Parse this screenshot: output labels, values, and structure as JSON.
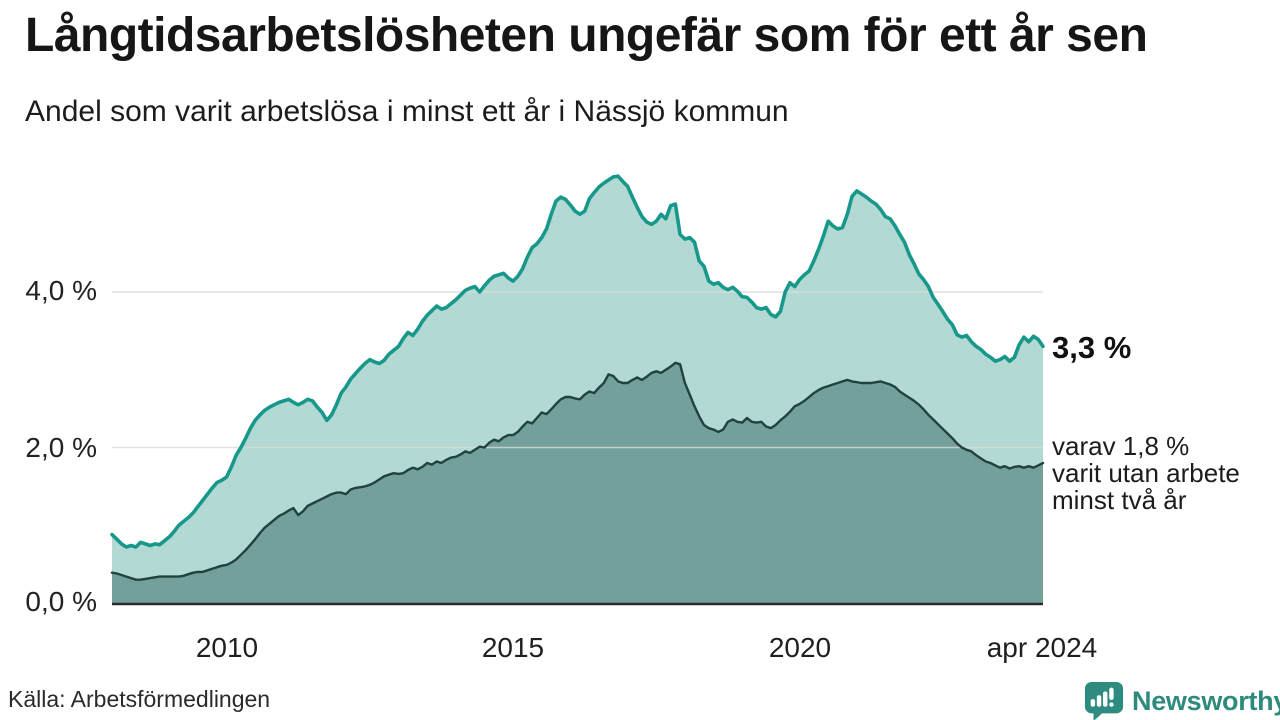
{
  "header": {
    "title": "Långtidsarbetslösheten ungefär som för ett år sen",
    "subtitle": "Andel som varit arbetslösa i minst ett år i Nässjö kommun"
  },
  "annotations": {
    "total_label": "3,3 %",
    "secondary_lines": [
      "varav 1,8 %",
      "varit utan arbete",
      "minst två år"
    ]
  },
  "source": {
    "label": "Källa: Arbetsförmedlingen"
  },
  "branding": {
    "wordmark": "Newsworthy",
    "color": "#2f8a7e",
    "icon": "speech-bubble-bar-chart"
  },
  "colors": {
    "background": "#ffffff",
    "grid": "#d9d9d9",
    "axis": "#2b2b2b",
    "total_line": "#18988b",
    "total_fill": "#b2d9d3",
    "two_year_line": "#21423e",
    "two_year_fill": "#74a09b"
  },
  "chart_data": {
    "type": "area",
    "title": "Långtidsarbetslösheten ungefär som för ett år sen",
    "subtitle": "Andel som varit arbetslösa i minst ett år i Nässjö kommun",
    "unit": "percent",
    "x_start": "2008-01",
    "x_end": "2024-04",
    "frequency": "monthly",
    "x_tick_labels": [
      "2010",
      "2015",
      "2020",
      "apr 2024"
    ],
    "x_tick_positions": [
      "2010-01",
      "2015-01",
      "2020-01",
      "2024-04"
    ],
    "y_ticks": [
      {
        "label": "0,0 %",
        "value": 0
      },
      {
        "label": "2,0 %",
        "value": 2
      },
      {
        "label": "4,0 %",
        "value": 4
      }
    ],
    "grid_values": [
      2,
      4
    ],
    "ylim": [
      0,
      5.8
    ],
    "legend": "none",
    "series": [
      {
        "name": "Andel arbetslösa minst ett år",
        "end_label": "3,3 %",
        "end_value": 3.3,
        "line_color": "#18988b",
        "fill_color": "#b2d9d3",
        "values": [
          0.88,
          0.82,
          0.76,
          0.72,
          0.74,
          0.72,
          0.78,
          0.76,
          0.74,
          0.76,
          0.75,
          0.8,
          0.85,
          0.92,
          1.0,
          1.05,
          1.1,
          1.16,
          1.24,
          1.32,
          1.4,
          1.48,
          1.55,
          1.58,
          1.62,
          1.75,
          1.9,
          2.0,
          2.12,
          2.25,
          2.35,
          2.42,
          2.48,
          2.52,
          2.55,
          2.58,
          2.6,
          2.62,
          2.58,
          2.55,
          2.58,
          2.62,
          2.6,
          2.52,
          2.45,
          2.35,
          2.42,
          2.55,
          2.7,
          2.78,
          2.88,
          2.95,
          3.02,
          3.08,
          3.13,
          3.1,
          3.08,
          3.12,
          3.2,
          3.25,
          3.3,
          3.4,
          3.48,
          3.44,
          3.52,
          3.62,
          3.7,
          3.76,
          3.82,
          3.78,
          3.8,
          3.85,
          3.9,
          3.96,
          4.02,
          4.05,
          4.07,
          4.0,
          4.08,
          4.15,
          4.2,
          4.22,
          4.24,
          4.18,
          4.14,
          4.2,
          4.3,
          4.45,
          4.57,
          4.62,
          4.7,
          4.81,
          5.0,
          5.17,
          5.22,
          5.19,
          5.12,
          5.04,
          5.0,
          5.04,
          5.2,
          5.28,
          5.35,
          5.4,
          5.44,
          5.48,
          5.49,
          5.42,
          5.36,
          5.22,
          5.09,
          4.97,
          4.9,
          4.87,
          4.91,
          5.0,
          4.94,
          5.11,
          5.13,
          4.74,
          4.68,
          4.7,
          4.64,
          4.4,
          4.33,
          4.14,
          4.1,
          4.12,
          4.06,
          4.03,
          4.06,
          4.01,
          3.94,
          3.93,
          3.87,
          3.8,
          3.78,
          3.8,
          3.71,
          3.68,
          3.75,
          4.0,
          4.12,
          4.07,
          4.16,
          4.22,
          4.27,
          4.4,
          4.55,
          4.72,
          4.91,
          4.85,
          4.81,
          4.83,
          5.0,
          5.23,
          5.3,
          5.26,
          5.22,
          5.17,
          5.13,
          5.06,
          4.97,
          4.94,
          4.85,
          4.74,
          4.64,
          4.48,
          4.36,
          4.23,
          4.16,
          4.07,
          3.93,
          3.84,
          3.75,
          3.65,
          3.58,
          3.45,
          3.42,
          3.44,
          3.36,
          3.3,
          3.26,
          3.2,
          3.16,
          3.11,
          3.13,
          3.17,
          3.11,
          3.16,
          3.32,
          3.42,
          3.36,
          3.43,
          3.39,
          3.3
        ]
      },
      {
        "name": "varav utan arbete minst två år",
        "end_label": "1,8 %",
        "end_value": 1.8,
        "line_color": "#21423e",
        "fill_color": "#74a09b",
        "values": [
          0.39,
          0.38,
          0.36,
          0.34,
          0.32,
          0.3,
          0.3,
          0.31,
          0.32,
          0.33,
          0.34,
          0.34,
          0.34,
          0.34,
          0.34,
          0.35,
          0.37,
          0.39,
          0.4,
          0.4,
          0.42,
          0.44,
          0.46,
          0.48,
          0.49,
          0.52,
          0.56,
          0.62,
          0.68,
          0.75,
          0.82,
          0.9,
          0.97,
          1.02,
          1.07,
          1.12,
          1.15,
          1.19,
          1.22,
          1.13,
          1.18,
          1.25,
          1.28,
          1.31,
          1.34,
          1.37,
          1.4,
          1.42,
          1.42,
          1.4,
          1.46,
          1.48,
          1.49,
          1.5,
          1.52,
          1.55,
          1.59,
          1.63,
          1.65,
          1.67,
          1.66,
          1.67,
          1.71,
          1.74,
          1.72,
          1.75,
          1.8,
          1.78,
          1.82,
          1.8,
          1.84,
          1.87,
          1.88,
          1.91,
          1.95,
          1.93,
          1.97,
          2.01,
          2.0,
          2.06,
          2.1,
          2.08,
          2.13,
          2.16,
          2.16,
          2.2,
          2.27,
          2.33,
          2.31,
          2.38,
          2.45,
          2.43,
          2.49,
          2.56,
          2.62,
          2.65,
          2.65,
          2.63,
          2.62,
          2.68,
          2.72,
          2.7,
          2.77,
          2.83,
          2.94,
          2.92,
          2.85,
          2.83,
          2.83,
          2.87,
          2.9,
          2.87,
          2.91,
          2.96,
          2.98,
          2.96,
          3.0,
          3.04,
          3.09,
          3.07,
          2.83,
          2.68,
          2.53,
          2.4,
          2.29,
          2.25,
          2.23,
          2.2,
          2.23,
          2.33,
          2.36,
          2.33,
          2.32,
          2.38,
          2.33,
          2.32,
          2.33,
          2.27,
          2.25,
          2.29,
          2.35,
          2.4,
          2.46,
          2.53,
          2.56,
          2.6,
          2.65,
          2.7,
          2.74,
          2.77,
          2.79,
          2.81,
          2.83,
          2.85,
          2.87,
          2.85,
          2.84,
          2.83,
          2.83,
          2.83,
          2.84,
          2.85,
          2.83,
          2.81,
          2.78,
          2.72,
          2.68,
          2.64,
          2.6,
          2.55,
          2.49,
          2.42,
          2.36,
          2.3,
          2.24,
          2.18,
          2.12,
          2.05,
          2.0,
          1.97,
          1.95,
          1.9,
          1.86,
          1.82,
          1.8,
          1.77,
          1.74,
          1.76,
          1.73,
          1.75,
          1.76,
          1.74,
          1.76,
          1.74,
          1.77,
          1.8
        ]
      }
    ]
  }
}
